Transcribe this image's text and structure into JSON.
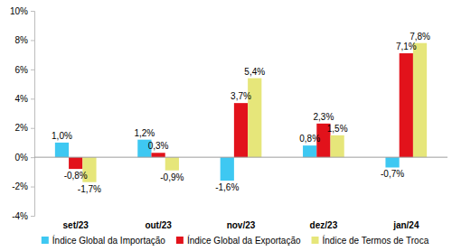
{
  "chart_data": {
    "type": "bar",
    "categories": [
      "set/23",
      "out/23",
      "nov/23",
      "dez/23",
      "jan/24"
    ],
    "series": [
      {
        "name": "Índice Global da Importação",
        "color": "#3ec8f2",
        "values": [
          1.0,
          1.2,
          -1.6,
          0.8,
          -0.7
        ],
        "value_labels": [
          "1,0%",
          "1,2%",
          "-1,6%",
          "0,8%",
          "-0,7%"
        ]
      },
      {
        "name": "Índice Global da Exportação",
        "color": "#e2121b",
        "values": [
          -0.8,
          0.3,
          3.7,
          2.3,
          7.1
        ],
        "value_labels": [
          "-0,8%",
          "0,3%",
          "3,7%",
          "2,3%",
          "7,1%"
        ]
      },
      {
        "name": "Índice de Termos de Troca",
        "color": "#e6e67a",
        "values": [
          -1.7,
          -0.9,
          5.4,
          1.5,
          7.8
        ],
        "value_labels": [
          "-1,7%",
          "-0,9%",
          "5,4%",
          "1,5%",
          "7,8%"
        ]
      }
    ],
    "ylim": [
      -4,
      10
    ],
    "yticks": [
      {
        "value": -4,
        "label": "-4%"
      },
      {
        "value": -2,
        "label": "-2%"
      },
      {
        "value": 0,
        "label": "0%"
      },
      {
        "value": 2,
        "label": "2%"
      },
      {
        "value": 4,
        "label": "4%"
      },
      {
        "value": 6,
        "label": "6%"
      },
      {
        "value": 8,
        "label": "8%"
      },
      {
        "value": 10,
        "label": "10%"
      }
    ],
    "grid": false,
    "legend": "bottom",
    "data_labels": true
  }
}
